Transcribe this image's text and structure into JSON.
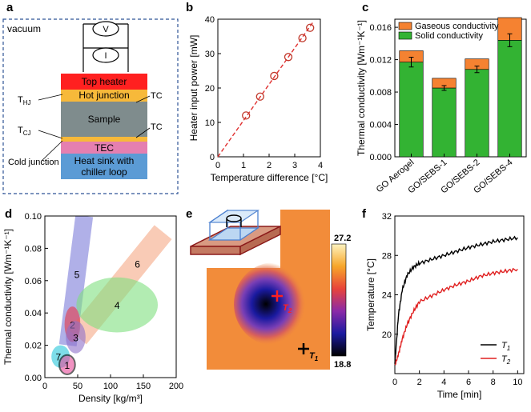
{
  "panels": {
    "a": {
      "label": "a",
      "environment": "vacuum",
      "meters": [
        "V",
        "I"
      ],
      "layers": [
        "Top heater",
        "Hot junction",
        "Sample",
        "TEC",
        "Heat sink with",
        "chiller loop"
      ],
      "side_labels": [
        "T",
        "HJ",
        "TC",
        "T",
        "CJ",
        "TC",
        "Cold junction"
      ],
      "colors": {
        "top_heater": "#ff2020",
        "hot_junction": "#f7b93a",
        "sample": "#7f8c8d",
        "tec": "#e57fb0",
        "heat_sink": "#5b9bd5",
        "border": "#2f5597"
      }
    },
    "b": {
      "label": "b"
    },
    "c": {
      "label": "c"
    },
    "d": {
      "label": "d"
    },
    "e": {
      "label": "e",
      "colorbar_max": "27.2",
      "colorbar_min": "18.8",
      "markers": [
        {
          "main": "T",
          "sub": "2"
        },
        {
          "main": "T",
          "sub": "1"
        }
      ]
    },
    "f": {
      "label": "f"
    }
  },
  "chart_data": [
    {
      "id": "b",
      "type": "scatter",
      "title": "",
      "xlabel": "Temperature difference [°C]",
      "ylabel": "Heater input power [mW]",
      "xlim": [
        0,
        4
      ],
      "ylim": [
        0,
        40
      ],
      "xticks": [
        "0",
        "1",
        "2",
        "3",
        "4"
      ],
      "yticks": [
        "0",
        "10",
        "20",
        "30",
        "40"
      ],
      "x": [
        1.1,
        1.65,
        2.2,
        2.75,
        3.3,
        3.6
      ],
      "y": [
        12,
        17.5,
        23.5,
        29,
        34.5,
        37.5
      ],
      "fit": {
        "style": "dashed",
        "color": "#e03030",
        "x": [
          0,
          3.7
        ],
        "y": [
          0,
          39
        ]
      },
      "marker_color": "#c0392b"
    },
    {
      "id": "c",
      "type": "bar",
      "title": "",
      "xlabel": "",
      "ylabel": "Thermal conductivity [Wm⁻¹K⁻¹]",
      "ylim": [
        0,
        0.017
      ],
      "yticks": [
        "0.000",
        "0.004",
        "0.008",
        "0.012",
        "0.016"
      ],
      "categories": [
        "GO Aerogel",
        "GO/SEBS-1",
        "GO/SEBS-2",
        "GO/SEBS-4"
      ],
      "series": [
        {
          "name": "Solid conductivity",
          "color": "#33b333",
          "values": [
            0.0117,
            0.0085,
            0.0108,
            0.0144
          ],
          "errors": [
            0.0006,
            0.0003,
            0.0004,
            0.0008
          ]
        },
        {
          "name": "Gaseous conductivity",
          "color": "#f58231",
          "values": [
            0.0014,
            0.0012,
            0.0013,
            0.0028
          ]
        }
      ],
      "legend": [
        "Gaseous conductivity",
        "Solid conductivity"
      ],
      "legend_position": "top-right"
    },
    {
      "id": "d",
      "type": "scatter",
      "title": "",
      "xlabel": "Density [kg/m³]",
      "ylabel": "Thermal conductivity [Wm⁻¹K⁻¹]",
      "xlim": [
        0,
        200
      ],
      "ylim": [
        0,
        0.1
      ],
      "xticks": [
        "0",
        "50",
        "100",
        "150",
        "200"
      ],
      "yticks": [
        "0.00",
        "0.02",
        "0.04",
        "0.06",
        "0.08",
        "0.10"
      ],
      "regions": [
        {
          "label": "5",
          "type": "band",
          "color": "#6f6fd6",
          "from": [
            35,
            0.02
          ],
          "to": [
            60,
            0.1
          ]
        },
        {
          "label": "6",
          "type": "band",
          "color": "#f4a07a",
          "from": [
            50,
            0.025
          ],
          "to": [
            180,
            0.09
          ]
        },
        {
          "label": "4",
          "type": "ellipse",
          "color": "#7fe07f",
          "cx": 110,
          "cy": 0.045,
          "rx": 62,
          "ry": 0.017
        },
        {
          "label": "2",
          "type": "ellipse",
          "color": "#e63946",
          "cx": 42,
          "cy": 0.033,
          "rx": 12,
          "ry": 0.011
        },
        {
          "label": "3",
          "type": "ellipse",
          "color": "#8e6fc9",
          "cx": 47,
          "cy": 0.025,
          "rx": 15,
          "ry": 0.01
        },
        {
          "label": "7",
          "type": "ellipse",
          "color": "#26c6da",
          "cx": 24,
          "cy": 0.013,
          "rx": 14,
          "ry": 0.007
        },
        {
          "label": "1",
          "type": "ellipse",
          "color": "#e94b9b",
          "cx": 34,
          "cy": 0.008,
          "rx": 12,
          "ry": 0.006
        }
      ]
    },
    {
      "id": "f",
      "type": "line",
      "title": "",
      "xlabel": "Time [min]",
      "ylabel": "Temperature [°C]",
      "xlim": [
        0,
        10.5
      ],
      "ylim": [
        16,
        32
      ],
      "xticks": [
        "0",
        "2",
        "4",
        "6",
        "8",
        "10"
      ],
      "yticks": [
        "20",
        "24",
        "28",
        "32"
      ],
      "series": [
        {
          "name": "T",
          "sub": "1",
          "color": "#000000",
          "x": [
            0,
            0.3,
            0.6,
            1,
            1.5,
            2,
            3,
            4,
            5,
            6,
            7,
            8,
            9,
            10
          ],
          "y": [
            17,
            22,
            24.5,
            26,
            26.8,
            27.2,
            27.6,
            28.0,
            28.4,
            28.8,
            29.1,
            29.4,
            29.6,
            29.8
          ]
        },
        {
          "name": "T",
          "sub": "2",
          "color": "#e02020",
          "x": [
            0,
            0.3,
            0.6,
            1,
            1.5,
            2,
            3,
            4,
            5,
            6,
            7,
            8,
            9,
            10
          ],
          "y": [
            16.8,
            18,
            19.5,
            21,
            22.3,
            23.3,
            23.9,
            24.5,
            25,
            25.4,
            25.9,
            26.2,
            26.4,
            26.6
          ]
        }
      ],
      "legend_position": "bottom-right"
    }
  ]
}
